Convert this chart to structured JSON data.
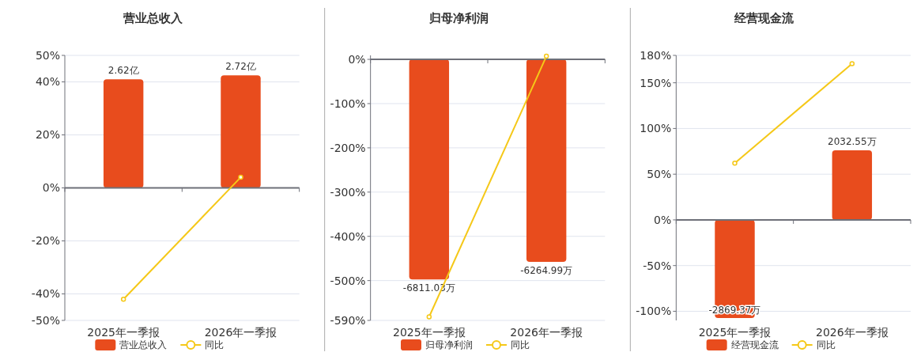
{
  "chart_data": [
    {
      "type": "bar",
      "title": "营业总收入",
      "categories": [
        "2025年一季报",
        "2026年一季报"
      ],
      "ylim": [
        -50,
        50
      ],
      "yticks": [
        {
          "value": -50,
          "label": "-50%"
        },
        {
          "value": -40,
          "label": "-40%"
        },
        {
          "value": -20,
          "label": "-20%"
        },
        {
          "value": 0,
          "label": "0%"
        },
        {
          "value": 20,
          "label": "20%"
        },
        {
          "value": 40,
          "label": "40%"
        },
        {
          "value": 50,
          "label": "50%"
        }
      ],
      "y2lim": [
        -3.2,
        3.2
      ],
      "grid": "y",
      "legend": "bottom",
      "series": [
        {
          "name": "营业总收入",
          "axis": "y2",
          "color": "#e84c1d",
          "values": [
            2.62,
            2.72
          ],
          "value_labels": [
            "2.62亿",
            "2.72亿"
          ]
        },
        {
          "name": "同比",
          "type": "line",
          "color": "#f5c818",
          "marker": "circle",
          "values": [
            -42,
            4
          ]
        }
      ]
    },
    {
      "type": "bar",
      "title": "归母净利润",
      "categories": [
        "2025年一季报",
        "2026年一季报"
      ],
      "ylim": [
        -590,
        9
      ],
      "yticks": [
        {
          "value": -590,
          "label": "-590%"
        },
        {
          "value": -500,
          "label": "-500%"
        },
        {
          "value": -400,
          "label": "-400%"
        },
        {
          "value": -300,
          "label": "-300%"
        },
        {
          "value": -200,
          "label": "-200%"
        },
        {
          "value": -100,
          "label": "-100%"
        },
        {
          "value": 0,
          "label": "0%"
        }
      ],
      "y2lim": [
        -8080,
        123
      ],
      "grid": "y",
      "legend": "bottom",
      "series": [
        {
          "name": "归母净利润",
          "axis": "y2",
          "color": "#e84c1d",
          "values": [
            -6811.03,
            -6264.99
          ],
          "value_labels": [
            "-6811.03万",
            "-6264.99万"
          ]
        },
        {
          "name": "同比",
          "type": "line",
          "color": "#f5c818",
          "marker": "circle",
          "values": [
            -582,
            7
          ]
        }
      ]
    },
    {
      "type": "bar",
      "title": "经营现金流",
      "categories": [
        "2025年一季报",
        "2026年一季报"
      ],
      "ylim": [
        -110,
        180
      ],
      "yticks": [
        {
          "value": -100,
          "label": "-100%"
        },
        {
          "value": -50,
          "label": "-50%"
        },
        {
          "value": 0,
          "label": "0%"
        },
        {
          "value": 50,
          "label": "50%"
        },
        {
          "value": 100,
          "label": "100%"
        },
        {
          "value": 150,
          "label": "150%"
        },
        {
          "value": 180,
          "label": "180%"
        }
      ],
      "y2lim": [
        -2940,
        4810
      ],
      "grid": "y",
      "legend": "bottom",
      "series": [
        {
          "name": "经营现金流",
          "axis": "y2",
          "color": "#e84c1d",
          "values": [
            -2869.37,
            2032.55
          ],
          "value_labels": [
            "-2869.37万",
            "2032.55万"
          ]
        },
        {
          "name": "同比",
          "type": "line",
          "color": "#f5c818",
          "marker": "circle",
          "values": [
            62,
            171
          ]
        }
      ]
    }
  ]
}
